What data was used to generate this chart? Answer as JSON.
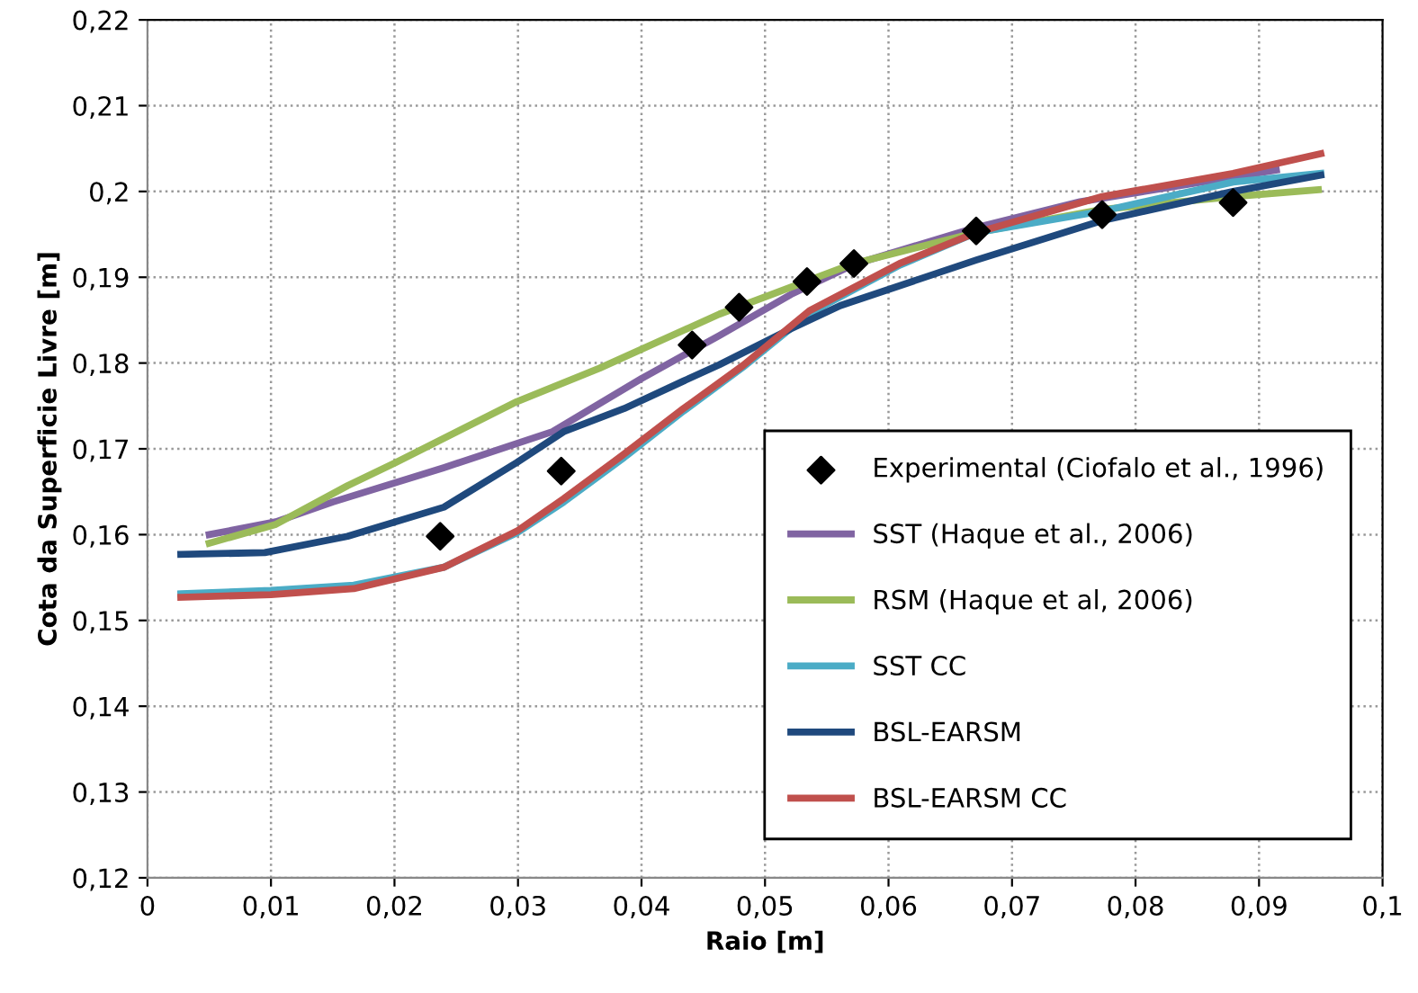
{
  "chart_data": {
    "type": "line",
    "xlabel": "Raio [m]",
    "ylabel": "Cota da Superficie Livre [m]",
    "xlim": [
      0,
      0.1
    ],
    "ylim": [
      0.12,
      0.22
    ],
    "xticks": [
      {
        "value": 0,
        "label": "0"
      },
      {
        "value": 0.01,
        "label": "0,01"
      },
      {
        "value": 0.02,
        "label": "0,02"
      },
      {
        "value": 0.03,
        "label": "0,03"
      },
      {
        "value": 0.04,
        "label": "0,04"
      },
      {
        "value": 0.05,
        "label": "0,05"
      },
      {
        "value": 0.06,
        "label": "0,06"
      },
      {
        "value": 0.07,
        "label": "0,07"
      },
      {
        "value": 0.08,
        "label": "0,08"
      },
      {
        "value": 0.09,
        "label": "0,09"
      },
      {
        "value": 0.1,
        "label": "0,1"
      }
    ],
    "yticks": [
      {
        "value": 0.12,
        "label": "0,12"
      },
      {
        "value": 0.13,
        "label": "0,13"
      },
      {
        "value": 0.14,
        "label": "0,14"
      },
      {
        "value": 0.15,
        "label": "0,15"
      },
      {
        "value": 0.16,
        "label": "0,16"
      },
      {
        "value": 0.17,
        "label": "0,17"
      },
      {
        "value": 0.18,
        "label": "0,18"
      },
      {
        "value": 0.19,
        "label": "0,19"
      },
      {
        "value": 0.2,
        "label": "0,2"
      },
      {
        "value": 0.21,
        "label": "0,21"
      },
      {
        "value": 0.22,
        "label": "0,22"
      }
    ],
    "grid": true,
    "legend": "bottom right",
    "line_style": "solid",
    "series": [
      {
        "name": "Experimental (Ciofalo et al., 1996)",
        "type": "scatter",
        "marker": "diamond",
        "color": "#000000",
        "x": [
          0.0237,
          0.0335,
          0.0441,
          0.0479,
          0.0534,
          0.0572,
          0.0671,
          0.0773,
          0.0879
        ],
        "values": [
          0.1598,
          0.1674,
          0.1821,
          0.1865,
          0.1895,
          0.1916,
          0.1954,
          0.1973,
          0.1987
        ]
      },
      {
        "name": "SST (Haque et al., 2006)",
        "color": "#8064a2",
        "x": [
          0.005,
          0.0104,
          0.015,
          0.024,
          0.0328,
          0.04,
          0.0463,
          0.0521,
          0.0572,
          0.0671,
          0.0755,
          0.0914
        ],
        "values": [
          0.16,
          0.1615,
          0.1638,
          0.1678,
          0.172,
          0.1782,
          0.1832,
          0.188,
          0.1915,
          0.1958,
          0.1988,
          0.2025
        ]
      },
      {
        "name": "RSM (Haque et al, 2006)",
        "color": "#9bbb59",
        "x": [
          0.005,
          0.0104,
          0.0162,
          0.0201,
          0.0299,
          0.0366,
          0.0463,
          0.0572,
          0.0671,
          0.0773,
          0.0879,
          0.0948
        ],
        "values": [
          0.159,
          0.1612,
          0.1657,
          0.1684,
          0.1755,
          0.1794,
          0.1857,
          0.1916,
          0.1952,
          0.1979,
          0.1994,
          0.2002
        ]
      },
      {
        "name": "SST CC",
        "color": "#4bacc6",
        "x": [
          0.0027,
          0.01,
          0.0167,
          0.024,
          0.0299,
          0.0337,
          0.0386,
          0.0434,
          0.0482,
          0.0536,
          0.0609,
          0.0671,
          0.0773,
          0.0879,
          0.095
        ],
        "values": [
          0.1531,
          0.1535,
          0.1541,
          0.1562,
          0.1602,
          0.1638,
          0.169,
          0.1744,
          0.1795,
          0.1858,
          0.1914,
          0.1952,
          0.1977,
          0.2011,
          0.2021
        ]
      },
      {
        "name": "BSL-EARSM",
        "color": "#1f497d",
        "x": [
          0.0027,
          0.0095,
          0.0162,
          0.024,
          0.0299,
          0.0337,
          0.0386,
          0.0434,
          0.0463,
          0.0521,
          0.0561,
          0.0671,
          0.0773,
          0.0879,
          0.095
        ],
        "values": [
          0.1577,
          0.1579,
          0.1598,
          0.1632,
          0.1684,
          0.172,
          0.1747,
          0.1779,
          0.1798,
          0.184,
          0.1867,
          0.192,
          0.1966,
          0.2,
          0.2019
        ]
      },
      {
        "name": "BSL-EARSM CC",
        "color": "#c0504d",
        "x": [
          0.0027,
          0.01,
          0.0167,
          0.024,
          0.0299,
          0.0337,
          0.0386,
          0.0434,
          0.0482,
          0.0536,
          0.0609,
          0.0671,
          0.0773,
          0.0879,
          0.095
        ],
        "values": [
          0.1527,
          0.153,
          0.1537,
          0.1562,
          0.1604,
          0.1642,
          0.1694,
          0.1747,
          0.1797,
          0.1861,
          0.1916,
          0.1952,
          0.1994,
          0.2021,
          0.2044
        ]
      }
    ]
  }
}
